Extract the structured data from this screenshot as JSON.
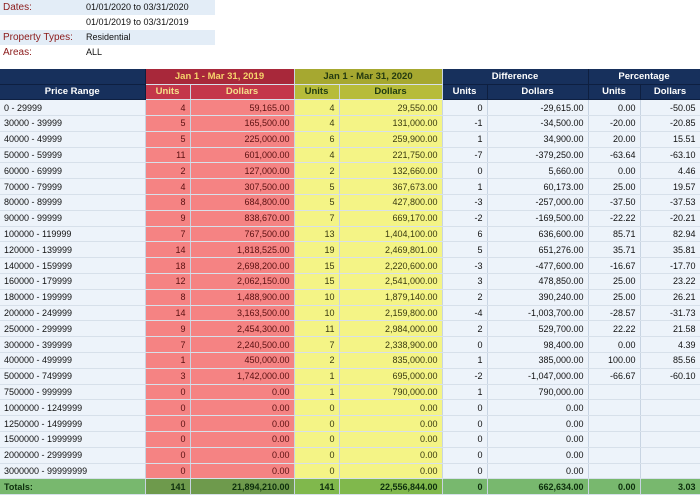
{
  "filters": [
    {
      "label": "Dates:",
      "value": "01/01/2020 to 03/31/2020"
    },
    {
      "label": "",
      "value": "01/01/2019 to 03/31/2019"
    },
    {
      "label": "Property Types:",
      "value": "Residential"
    },
    {
      "label": "Areas:",
      "value": "ALL"
    }
  ],
  "groups": {
    "period_2019": "Jan 1 - Mar 31, 2019",
    "period_2020": "Jan 1 - Mar 31, 2020",
    "difference": "Difference",
    "percentage": "Percentage"
  },
  "columns": {
    "price_range": "Price Range",
    "units": "Units",
    "dollars": "Dollars"
  },
  "rows": [
    [
      "0 - 29999",
      "4",
      "59,165.00",
      "4",
      "29,550.00",
      "0",
      "-29,615.00",
      "0.00",
      "-50.05"
    ],
    [
      "30000 - 39999",
      "5",
      "165,500.00",
      "4",
      "131,000.00",
      "-1",
      "-34,500.00",
      "-20.00",
      "-20.85"
    ],
    [
      "40000 - 49999",
      "5",
      "225,000.00",
      "6",
      "259,900.00",
      "1",
      "34,900.00",
      "20.00",
      "15.51"
    ],
    [
      "50000 - 59999",
      "11",
      "601,000.00",
      "4",
      "221,750.00",
      "-7",
      "-379,250.00",
      "-63.64",
      "-63.10"
    ],
    [
      "60000 - 69999",
      "2",
      "127,000.00",
      "2",
      "132,660.00",
      "0",
      "5,660.00",
      "0.00",
      "4.46"
    ],
    [
      "70000 - 79999",
      "4",
      "307,500.00",
      "5",
      "367,673.00",
      "1",
      "60,173.00",
      "25.00",
      "19.57"
    ],
    [
      "80000 - 89999",
      "8",
      "684,800.00",
      "5",
      "427,800.00",
      "-3",
      "-257,000.00",
      "-37.50",
      "-37.53"
    ],
    [
      "90000 - 99999",
      "9",
      "838,670.00",
      "7",
      "669,170.00",
      "-2",
      "-169,500.00",
      "-22.22",
      "-20.21"
    ],
    [
      "100000 - 119999",
      "7",
      "767,500.00",
      "13",
      "1,404,100.00",
      "6",
      "636,600.00",
      "85.71",
      "82.94"
    ],
    [
      "120000 - 139999",
      "14",
      "1,818,525.00",
      "19",
      "2,469,801.00",
      "5",
      "651,276.00",
      "35.71",
      "35.81"
    ],
    [
      "140000 - 159999",
      "18",
      "2,698,200.00",
      "15",
      "2,220,600.00",
      "-3",
      "-477,600.00",
      "-16.67",
      "-17.70"
    ],
    [
      "160000 - 179999",
      "12",
      "2,062,150.00",
      "15",
      "2,541,000.00",
      "3",
      "478,850.00",
      "25.00",
      "23.22"
    ],
    [
      "180000 - 199999",
      "8",
      "1,488,900.00",
      "10",
      "1,879,140.00",
      "2",
      "390,240.00",
      "25.00",
      "26.21"
    ],
    [
      "200000 - 249999",
      "14",
      "3,163,500.00",
      "10",
      "2,159,800.00",
      "-4",
      "-1,003,700.00",
      "-28.57",
      "-31.73"
    ],
    [
      "250000 - 299999",
      "9",
      "2,454,300.00",
      "11",
      "2,984,000.00",
      "2",
      "529,700.00",
      "22.22",
      "21.58"
    ],
    [
      "300000 - 399999",
      "7",
      "2,240,500.00",
      "7",
      "2,338,900.00",
      "0",
      "98,400.00",
      "0.00",
      "4.39"
    ],
    [
      "400000 - 499999",
      "1",
      "450,000.00",
      "2",
      "835,000.00",
      "1",
      "385,000.00",
      "100.00",
      "85.56"
    ],
    [
      "500000 - 749999",
      "3",
      "1,742,000.00",
      "1",
      "695,000.00",
      "-2",
      "-1,047,000.00",
      "-66.67",
      "-60.10"
    ],
    [
      "750000 - 999999",
      "0",
      "0.00",
      "1",
      "790,000.00",
      "1",
      "790,000.00",
      "",
      ""
    ],
    [
      "1000000 - 1249999",
      "0",
      "0.00",
      "0",
      "0.00",
      "0",
      "0.00",
      "",
      ""
    ],
    [
      "1250000 - 1499999",
      "0",
      "0.00",
      "0",
      "0.00",
      "0",
      "0.00",
      "",
      ""
    ],
    [
      "1500000 - 1999999",
      "0",
      "0.00",
      "0",
      "0.00",
      "0",
      "0.00",
      "",
      ""
    ],
    [
      "2000000 - 2999999",
      "0",
      "0.00",
      "0",
      "0.00",
      "0",
      "0.00",
      "",
      ""
    ],
    [
      "3000000 - 99999999",
      "0",
      "0.00",
      "0",
      "0.00",
      "0",
      "0.00",
      "",
      ""
    ]
  ],
  "totals": [
    "Totals:",
    "141",
    "21,894,210.00",
    "141",
    "22,556,844.00",
    "0",
    "662,634.00",
    "0.00",
    "3.03"
  ]
}
